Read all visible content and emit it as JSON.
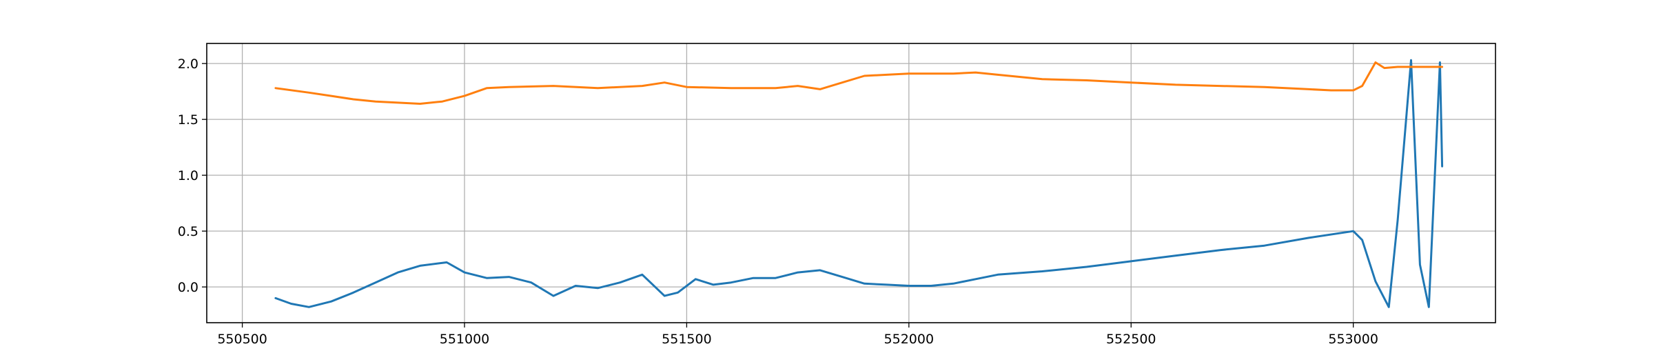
{
  "chart_data": {
    "type": "line",
    "title": "",
    "xlabel": "",
    "ylabel": "",
    "xlim": [
      550420,
      553320
    ],
    "ylim": [
      -0.32,
      2.18
    ],
    "grid": true,
    "legend": "none",
    "x_ticks": [
      {
        "value": 550500,
        "label": "550500"
      },
      {
        "value": 551000,
        "label": "551000"
      },
      {
        "value": 551500,
        "label": "551500"
      },
      {
        "value": 552000,
        "label": "552000"
      },
      {
        "value": 552500,
        "label": "552500"
      },
      {
        "value": 553000,
        "label": "553000"
      }
    ],
    "y_ticks": [
      {
        "value": 0.0,
        "label": "0.0"
      },
      {
        "value": 0.5,
        "label": "0.5"
      },
      {
        "value": 1.0,
        "label": "1.0"
      },
      {
        "value": 1.5,
        "label": "1.5"
      },
      {
        "value": 2.0,
        "label": "2.0"
      }
    ],
    "series": [
      {
        "color": "#1f77b4",
        "x": [
          550575,
          550610,
          550650,
          550700,
          550750,
          550800,
          550850,
          550900,
          550960,
          551000,
          551050,
          551100,
          551150,
          551200,
          551250,
          551300,
          551350,
          551400,
          551450,
          551480,
          551520,
          551560,
          551600,
          551650,
          551700,
          551750,
          551800,
          551850,
          551900,
          551950,
          552000,
          552050,
          552100,
          552150,
          552200,
          552300,
          552400,
          552500,
          552600,
          552700,
          552800,
          552900,
          553000,
          553020,
          553050,
          553080,
          553100,
          553130,
          553150,
          553170,
          553195,
          553200
        ],
        "y": [
          -0.1,
          -0.15,
          -0.18,
          -0.13,
          -0.05,
          0.04,
          0.13,
          0.19,
          0.22,
          0.13,
          0.08,
          0.09,
          0.04,
          -0.08,
          0.01,
          -0.01,
          0.04,
          0.11,
          -0.08,
          -0.05,
          0.07,
          0.02,
          0.04,
          0.08,
          0.08,
          0.13,
          0.15,
          0.09,
          0.03,
          0.02,
          0.01,
          0.01,
          0.03,
          0.07,
          0.11,
          0.14,
          0.18,
          0.23,
          0.28,
          0.33,
          0.37,
          0.44,
          0.5,
          0.42,
          0.05,
          -0.18,
          0.6,
          2.03,
          0.2,
          -0.18,
          2.01,
          1.08
        ]
      },
      {
        "color": "#ff7f0e",
        "x": [
          550575,
          550650,
          550700,
          550750,
          550800,
          550850,
          550900,
          550950,
          551000,
          551050,
          551100,
          551200,
          551300,
          551400,
          551450,
          551500,
          551600,
          551700,
          551750,
          551800,
          551850,
          551900,
          551950,
          552000,
          552100,
          552150,
          552200,
          552300,
          552400,
          552500,
          552600,
          552700,
          552800,
          552900,
          552950,
          553000,
          553020,
          553050,
          553070,
          553100,
          553200
        ],
        "y": [
          1.78,
          1.74,
          1.71,
          1.68,
          1.66,
          1.65,
          1.64,
          1.66,
          1.71,
          1.78,
          1.79,
          1.8,
          1.78,
          1.8,
          1.83,
          1.79,
          1.78,
          1.78,
          1.8,
          1.77,
          1.83,
          1.89,
          1.9,
          1.91,
          1.91,
          1.92,
          1.9,
          1.86,
          1.85,
          1.83,
          1.81,
          1.8,
          1.79,
          1.77,
          1.76,
          1.76,
          1.8,
          2.01,
          1.96,
          1.97,
          1.97
        ]
      }
    ]
  }
}
